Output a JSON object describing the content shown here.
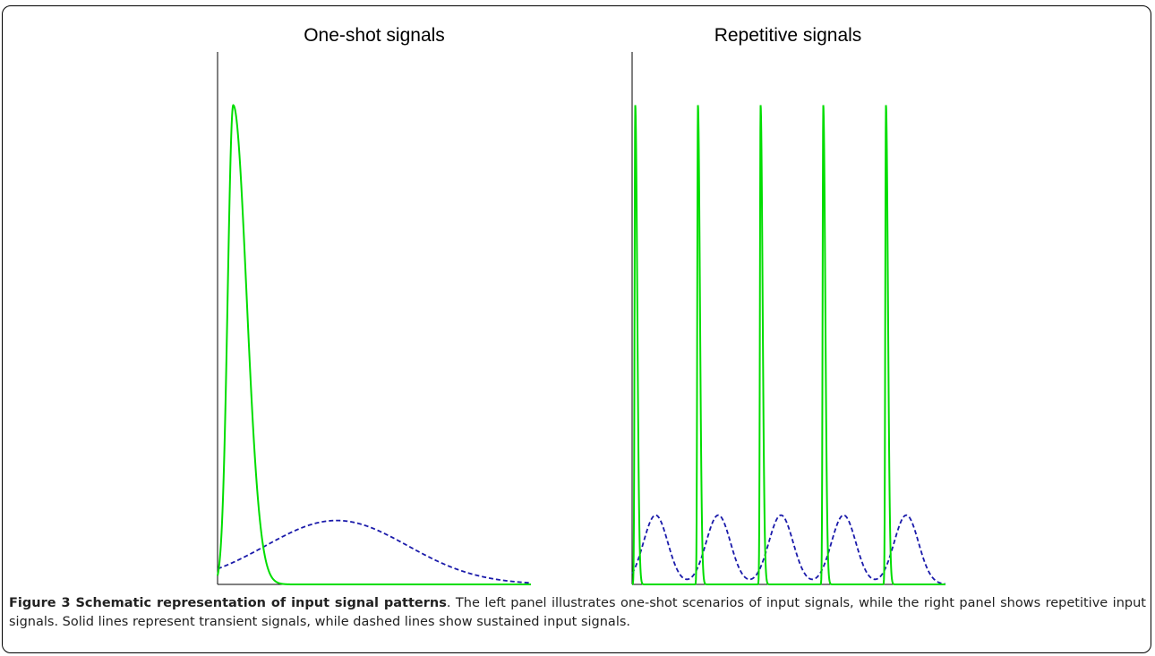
{
  "figure": {
    "label": "Figure 3 Schematic representation of input signal patterns",
    "text": ". The left panel illustrates one-shot scenarios of input signals, while the right panel shows repetitive input signals. Solid lines represent transient signals, while dashed lines show sustained input signals."
  },
  "colors": {
    "transient": "#00dd00",
    "sustained": "#1a1aaa",
    "axis": "#000000"
  },
  "chart_data": [
    {
      "type": "line",
      "title": "One-shot signals",
      "xlabel": "",
      "ylabel": "",
      "xlim": [
        0,
        10
      ],
      "ylim": [
        0,
        1
      ],
      "grid": false,
      "series": [
        {
          "style": "solid",
          "color": "#00dd00",
          "shape": "single transient pulse",
          "peak_x": 0.5,
          "peak_y": 0.9,
          "rise": 0.25,
          "decay": 0.6
        },
        {
          "style": "dashed",
          "color": "#1a1aaa",
          "shape": "single sustained hump",
          "peak_x": 3.8,
          "peak_y": 0.12,
          "width": 3.2
        }
      ]
    },
    {
      "type": "line",
      "title": "Repetitive signals",
      "xlabel": "",
      "ylabel": "",
      "xlim": [
        0,
        10
      ],
      "ylim": [
        0,
        1
      ],
      "grid": false,
      "series": [
        {
          "style": "solid",
          "color": "#00dd00",
          "shape": "repeated transient spikes",
          "peaks_x": [
            0.1,
            2.1,
            4.1,
            6.1,
            8.1
          ],
          "peak_y": 0.9
        },
        {
          "style": "dashed",
          "color": "#1a1aaa",
          "shape": "repeated sustained humps",
          "peaks_x": [
            0.75,
            2.75,
            4.75,
            6.75,
            8.75
          ],
          "peak_y": 0.13
        }
      ]
    }
  ]
}
